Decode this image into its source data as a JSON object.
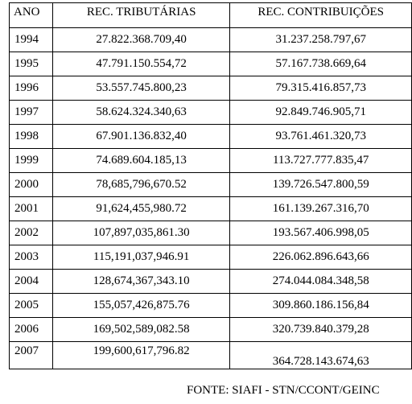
{
  "table": {
    "headers": [
      "ANO",
      "REC. TRIBUTÁRIAS",
      "REC. CONTRIBUIÇÕES"
    ],
    "rows": [
      [
        "1994",
        "27.822.368.709,40",
        "31.237.258.797,67"
      ],
      [
        "1995",
        "47.791.150.554,72",
        "57.167.738.669,64"
      ],
      [
        "1996",
        "53.557.745.800,23",
        "79.315.416.857,73"
      ],
      [
        "1997",
        "58.624.324.340,63",
        "92.849.746.905,71"
      ],
      [
        "1998",
        "67.901.136.832,40",
        "93.761.461.320,73"
      ],
      [
        "1999",
        "74.689.604.185,13",
        "113.727.777.835,47"
      ],
      [
        "2000",
        "78,685,796,670.52",
        "139.726.547.800,59"
      ],
      [
        "2001",
        "91,624,455,980.72",
        "161.139.267.316,70"
      ],
      [
        "2002",
        "107,897,035,861.30",
        "193.567.406.998,05"
      ],
      [
        "2003",
        "115,191,037,946.91",
        "226.062.896.643,66"
      ],
      [
        "2004",
        "128,674,367,343.10",
        "274.044.084.348,58"
      ],
      [
        "2005",
        "155,057,426,875.76",
        "309.860.186.156,84"
      ],
      [
        "2006",
        "169,502,589,082.58",
        "320.739.840.379,28"
      ],
      [
        "2007",
        "199,600,617,796.82",
        "364.728.143.674,63"
      ]
    ]
  },
  "source": "FONTE: SIAFI - STN/CCONT/GEINC"
}
